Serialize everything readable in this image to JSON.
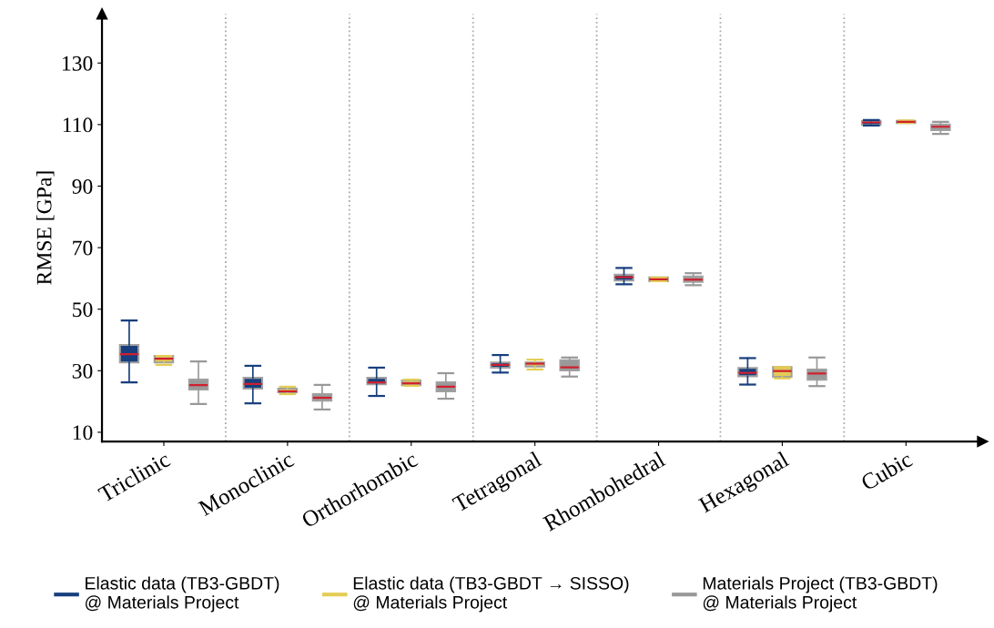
{
  "chart_data": {
    "type": "box",
    "ylabel": "RMSE [GPa]",
    "categories": [
      "Triclinic",
      "Monoclinic",
      "Orthorhombic",
      "Tetragonal",
      "Rhombohedral",
      "Hexagonal",
      "Cubic"
    ],
    "ylim": [
      7,
      146
    ],
    "yticks": [
      10,
      30,
      50,
      70,
      90,
      110,
      130
    ],
    "legend": "bottom",
    "grid": false,
    "series": [
      {
        "name": "Elastic data (TB3-GBDT)\n@ Materials Project",
        "color": "#173f7d",
        "boxes": [
          {
            "low": 26.2,
            "q1": 32.7,
            "median": 35.4,
            "q3": 38.4,
            "high": 46.3
          },
          {
            "low": 19.4,
            "q1": 24.2,
            "median": 25.7,
            "q3": 27.7,
            "high": 31.6
          },
          {
            "low": 21.8,
            "q1": 25.6,
            "median": 26.2,
            "q3": 27.7,
            "high": 31.0
          },
          {
            "low": 29.4,
            "q1": 31.0,
            "median": 31.9,
            "q3": 32.7,
            "high": 35.1
          },
          {
            "low": 58.1,
            "q1": 59.3,
            "median": 60.4,
            "q3": 61.2,
            "high": 63.4
          },
          {
            "low": 25.5,
            "q1": 28.2,
            "median": 29.3,
            "q3": 30.9,
            "high": 34.1
          },
          {
            "low": 109.7,
            "q1": 109.9,
            "median": 110.7,
            "q3": 111.2,
            "high": 111.5
          }
        ]
      },
      {
        "name": "Elastic data (TB3-GBDT → SISSO)\n@ Materials Project",
        "color": "#e3cd55",
        "boxes": [
          {
            "low": 31.9,
            "q1": 32.7,
            "median": 33.9,
            "q3": 34.8,
            "high": 34.8
          },
          {
            "low": 22.4,
            "q1": 23.0,
            "median": 23.3,
            "q3": 24.2,
            "high": 24.8
          },
          {
            "low": 25.1,
            "q1": 25.3,
            "median": 25.9,
            "q3": 26.8,
            "high": 27.1
          },
          {
            "low": 30.4,
            "q1": 31.4,
            "median": 32.3,
            "q3": 32.7,
            "high": 33.6
          },
          {
            "low": 59.1,
            "q1": 59.1,
            "median": 59.7,
            "q3": 60.3,
            "high": 60.3
          },
          {
            "low": 27.5,
            "q1": 28.0,
            "median": 29.9,
            "q3": 31.2,
            "high": 31.2
          },
          {
            "low": 110.5,
            "q1": 110.5,
            "median": 110.9,
            "q3": 111.2,
            "high": 111.3
          }
        ]
      },
      {
        "name": "Materials Project (TB3-GBDT)\n@ Materials Project",
        "color": "#999999",
        "boxes": [
          {
            "low": 19.2,
            "q1": 23.9,
            "median": 25.3,
            "q3": 27.1,
            "high": 33.0
          },
          {
            "low": 17.4,
            "q1": 20.3,
            "median": 21.2,
            "q3": 22.4,
            "high": 25.4
          },
          {
            "low": 20.9,
            "q1": 23.3,
            "median": 24.8,
            "q3": 26.2,
            "high": 29.2
          },
          {
            "low": 28.1,
            "q1": 30.1,
            "median": 31.1,
            "q3": 33.4,
            "high": 34.3
          },
          {
            "low": 57.8,
            "q1": 58.9,
            "median": 59.6,
            "q3": 60.6,
            "high": 61.7
          },
          {
            "low": 25.0,
            "q1": 27.1,
            "median": 29.1,
            "q3": 30.4,
            "high": 34.3
          },
          {
            "low": 107.0,
            "q1": 108.2,
            "median": 109.3,
            "q3": 110.0,
            "high": 110.9
          }
        ]
      }
    ]
  }
}
